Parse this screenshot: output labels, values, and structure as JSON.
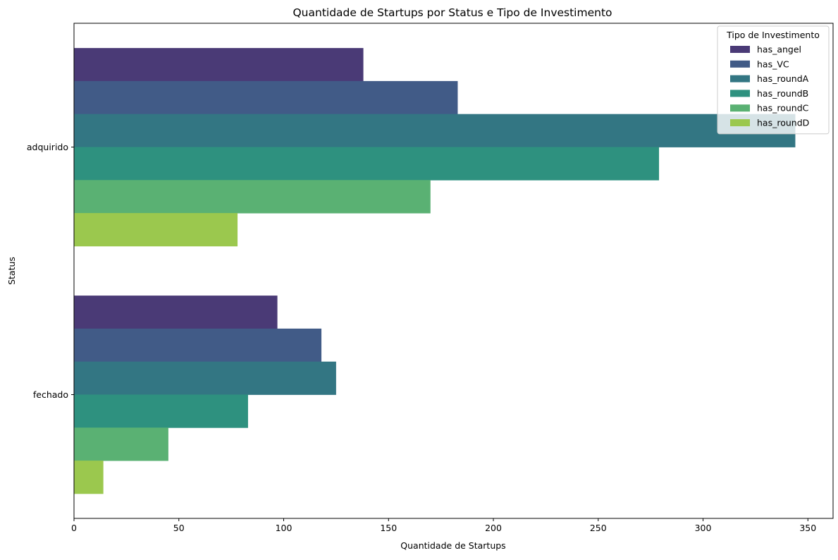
{
  "chart_data": {
    "type": "bar",
    "orientation": "horizontal",
    "title": "Quantidade de Startups por Status e Tipo de Investimento",
    "xlabel": "Quantidade de Startups",
    "ylabel": "Status",
    "xlim": [
      0,
      362
    ],
    "xticks": [
      0,
      50,
      100,
      150,
      200,
      250,
      300,
      350
    ],
    "categories": [
      "adquirido",
      "fechado"
    ],
    "grid": false,
    "legend": {
      "title": "Tipo de Investimento",
      "placement": "top-right"
    },
    "series": [
      {
        "name": "has_angel",
        "color": "#4a3a76",
        "values": [
          138,
          97
        ]
      },
      {
        "name": "has_VC",
        "color": "#415b87",
        "values": [
          183,
          118
        ]
      },
      {
        "name": "has_roundA",
        "color": "#337683",
        "values": [
          344,
          125
        ]
      },
      {
        "name": "has_roundB",
        "color": "#2e917f",
        "values": [
          279,
          83
        ]
      },
      {
        "name": "has_roundC",
        "color": "#5ab173",
        "values": [
          170,
          45
        ]
      },
      {
        "name": "has_roundD",
        "color": "#9bc84e",
        "values": [
          78,
          14
        ]
      }
    ]
  }
}
